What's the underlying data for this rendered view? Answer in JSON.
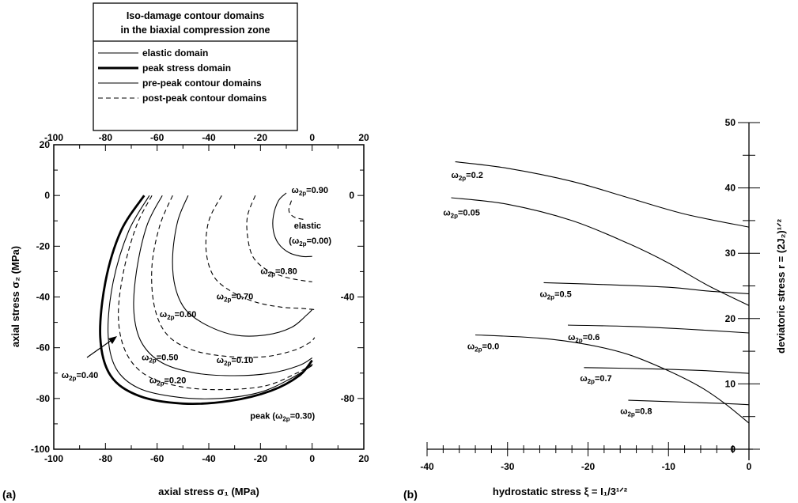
{
  "legend": {
    "title_line1": "Iso-damage contour domains",
    "title_line2": "in the biaxial compression zone",
    "items": [
      {
        "label": "elastic domain",
        "style": "thin"
      },
      {
        "label": "peak stress domain",
        "style": "thick"
      },
      {
        "label": "pre-peak contour domains",
        "style": "thin"
      },
      {
        "label": "post-peak contour domains",
        "style": "dashed"
      }
    ]
  },
  "chart_data": [
    {
      "panel": "(a)",
      "type": "line",
      "xlabel": "axial stress σ₁ (MPa)",
      "ylabel": "axial stress σ₂ (MPa)",
      "xlim": [
        -100,
        20
      ],
      "ylim": [
        -100,
        20
      ],
      "x_ticks": [
        "-100",
        "-80",
        "-60",
        "-40",
        "-20",
        "0",
        "20"
      ],
      "y_ticks": [
        "20",
        "0",
        "-20",
        "-40",
        "-60",
        "-80",
        "-100"
      ],
      "right_ticks": [
        "0",
        "-40",
        "-80"
      ],
      "series": [
        {
          "style": "thin",
          "points": [
            [
              -10,
              1
            ],
            [
              -13,
              -2
            ],
            [
              -15,
              -8
            ],
            [
              -15,
              -14
            ],
            [
              -13,
              -19
            ],
            [
              -9,
              -22.5
            ],
            [
              -4,
              -24
            ],
            [
              0,
              -24
            ]
          ]
        },
        {
          "style": "dashed",
          "points": [
            [
              -8,
              -2
            ],
            [
              -9,
              -6
            ],
            [
              -7,
              -8.5
            ],
            [
              -3,
              -9.5
            ]
          ]
        },
        {
          "style": "dashed",
          "points": [
            [
              -22,
              0
            ],
            [
              -25,
              -8
            ],
            [
              -25,
              -16
            ],
            [
              -23,
              -24
            ],
            [
              -18,
              -29
            ],
            [
              -11,
              -32
            ],
            [
              -4,
              -33.5
            ],
            [
              0,
              -34
            ]
          ]
        },
        {
          "style": "dashed",
          "points": [
            [
              -35,
              0
            ],
            [
              -40,
              -10
            ],
            [
              -41,
              -22
            ],
            [
              -38,
              -32
            ],
            [
              -31,
              -38
            ],
            [
              -22,
              -42
            ],
            [
              -12,
              -44
            ],
            [
              -4,
              -44.5
            ],
            [
              1,
              -45
            ]
          ]
        },
        {
          "style": "thin",
          "points": [
            [
              -48,
              0
            ],
            [
              -52,
              -10
            ],
            [
              -54,
              -24
            ],
            [
              -53,
              -36
            ],
            [
              -49,
              -45
            ],
            [
              -41,
              -51
            ],
            [
              -30,
              -55
            ],
            [
              -18,
              -55
            ],
            [
              -8,
              -52
            ],
            [
              -2,
              -47
            ],
            [
              0,
              -45
            ]
          ]
        },
        {
          "style": "dashed",
          "points": [
            [
              -54,
              0
            ],
            [
              -59,
              -12
            ],
            [
              -62,
              -28
            ],
            [
              -61,
              -44
            ],
            [
              -56,
              -55
            ],
            [
              -46,
              -61
            ],
            [
              -32,
              -63.5
            ],
            [
              -18,
              -63.5
            ],
            [
              -7,
              -61
            ],
            [
              -1,
              -58
            ],
            [
              1,
              -56
            ]
          ]
        },
        {
          "style": "thin",
          "points": [
            [
              -58,
              0
            ],
            [
              -64,
              -12
            ],
            [
              -68,
              -30
            ],
            [
              -69,
              -46
            ],
            [
              -66,
              -58
            ],
            [
              -58,
              -66
            ],
            [
              -45,
              -70
            ],
            [
              -30,
              -71
            ],
            [
              -16,
              -70
            ],
            [
              -5,
              -67
            ],
            [
              0,
              -64
            ]
          ]
        },
        {
          "style": "dashed",
          "points": [
            [
              -62,
              0
            ],
            [
              -68,
              -12
            ],
            [
              -73,
              -30
            ],
            [
              -75,
              -48
            ],
            [
              -72,
              -62
            ],
            [
              -64,
              -71
            ],
            [
              -50,
              -75.5
            ],
            [
              -34,
              -76.5
            ],
            [
              -18,
              -75
            ],
            [
              -6,
              -70
            ],
            [
              1,
              -66
            ]
          ]
        },
        {
          "style": "thin",
          "points": [
            [
              -63,
              0
            ],
            [
              -71,
              -14
            ],
            [
              -77,
              -34
            ],
            [
              -79,
              -54
            ],
            [
              -76,
              -68
            ],
            [
              -67,
              -76
            ],
            [
              -52,
              -79.5
            ],
            [
              -36,
              -80
            ],
            [
              -20,
              -77.5
            ],
            [
              -8,
              -72
            ],
            [
              0,
              -67
            ]
          ]
        },
        {
          "style": "thick",
          "points": [
            [
              -65,
              0
            ],
            [
              -74,
              -14
            ],
            [
              -80,
              -34
            ],
            [
              -82,
              -56
            ],
            [
              -78,
              -71
            ],
            [
              -67,
              -79
            ],
            [
              -50,
              -82
            ],
            [
              -32,
              -81
            ],
            [
              -16,
              -77
            ],
            [
              -5,
              -71
            ],
            [
              0,
              -65
            ]
          ]
        }
      ],
      "annotations": [
        {
          "text": "ω2p=0.90",
          "x": -8,
          "y": 1
        },
        {
          "text": "elastic",
          "x": -7,
          "y": -13
        },
        {
          "text": "(ω2p=0.00)",
          "x": -9,
          "y": -19
        },
        {
          "text": "ω2p=0.80",
          "x": -20,
          "y": -31
        },
        {
          "text": "ω2p=0.70",
          "x": -37,
          "y": -41
        },
        {
          "text": "ω2p=0.60",
          "x": -59,
          "y": -48
        },
        {
          "text": "ω2p=0.50",
          "x": -66,
          "y": -65
        },
        {
          "text": "ω2p=0.10",
          "x": -37,
          "y": -66
        },
        {
          "text": "ω2p=0.40",
          "x": -97,
          "y": -72
        },
        {
          "text": "ω2p=0.20",
          "x": -63,
          "y": -74
        },
        {
          "text": "peak  (ω2p=0.30)",
          "x": -24,
          "y": -88
        }
      ]
    },
    {
      "panel": "(b)",
      "type": "line",
      "xlabel": "hydrostatic stress ξ = I₁/3¹ᐟ²",
      "ylabel": "deviatoric stress r = (2J₂)¹ᐟ²",
      "xlim": [
        -40,
        0
      ],
      "ylim": [
        0,
        50
      ],
      "x_ticks": [
        "-40",
        "-30",
        "-20",
        "-10",
        "0"
      ],
      "y_ticks": [
        "0",
        "10",
        "20",
        "30",
        "40",
        "50"
      ],
      "series": [
        {
          "name": "ω2p=0.2",
          "points": [
            [
              -36.5,
              44
            ],
            [
              -30,
              43
            ],
            [
              -22,
              41
            ],
            [
              -15,
              38.5
            ],
            [
              -8,
              36
            ],
            [
              0,
              34
            ]
          ]
        },
        {
          "name": "ω2p=0.05",
          "points": [
            [
              -37,
              38.5
            ],
            [
              -30,
              37.5
            ],
            [
              -22,
              35
            ],
            [
              -15,
              31.5
            ],
            [
              -10,
              28.5
            ],
            [
              -5,
              25
            ],
            [
              0,
              22
            ]
          ]
        },
        {
          "name": "ω2p=0.5",
          "points": [
            [
              -25.5,
              25.5
            ],
            [
              -18,
              25.2
            ],
            [
              -10,
              24.8
            ],
            [
              -5,
              24.2
            ],
            [
              0,
              23.8
            ]
          ]
        },
        {
          "name": "ω2p=0.6",
          "points": [
            [
              -22.5,
              19
            ],
            [
              -15,
              18.8
            ],
            [
              -8,
              18.4
            ],
            [
              0,
              17.8
            ]
          ]
        },
        {
          "name": "ω2p=0.0",
          "points": [
            [
              -34,
              17.5
            ],
            [
              -26,
              17
            ],
            [
              -20,
              16
            ],
            [
              -15,
              14.5
            ],
            [
              -10,
              12
            ],
            [
              -6,
              9.5
            ],
            [
              -3,
              7
            ],
            [
              0,
              4
            ]
          ]
        },
        {
          "name": "ω2p=0.7",
          "points": [
            [
              -20.5,
              12.5
            ],
            [
              -12,
              12.3
            ],
            [
              -5,
              12
            ],
            [
              0,
              11.6
            ]
          ]
        },
        {
          "name": "ω2p=0.8",
          "points": [
            [
              -15,
              7.5
            ],
            [
              -8,
              7.2
            ],
            [
              -3,
              7
            ],
            [
              0,
              6.8
            ]
          ]
        }
      ],
      "annotations": [
        {
          "text": "ω2p=0.2",
          "x": -37,
          "y": 41.5
        },
        {
          "text": "ω2p=0.05",
          "x": -38,
          "y": 35.8
        },
        {
          "text": "ω2p=0.5",
          "x": -26,
          "y": 23.3
        },
        {
          "text": "ω2p=0.6",
          "x": -22.5,
          "y": 16.7
        },
        {
          "text": "ω2p=0.0",
          "x": -35,
          "y": 15.3
        },
        {
          "text": "ω2p=0.7",
          "x": -21,
          "y": 10.4
        },
        {
          "text": "ω2p=0.8",
          "x": -16,
          "y": 5.4
        }
      ]
    }
  ]
}
